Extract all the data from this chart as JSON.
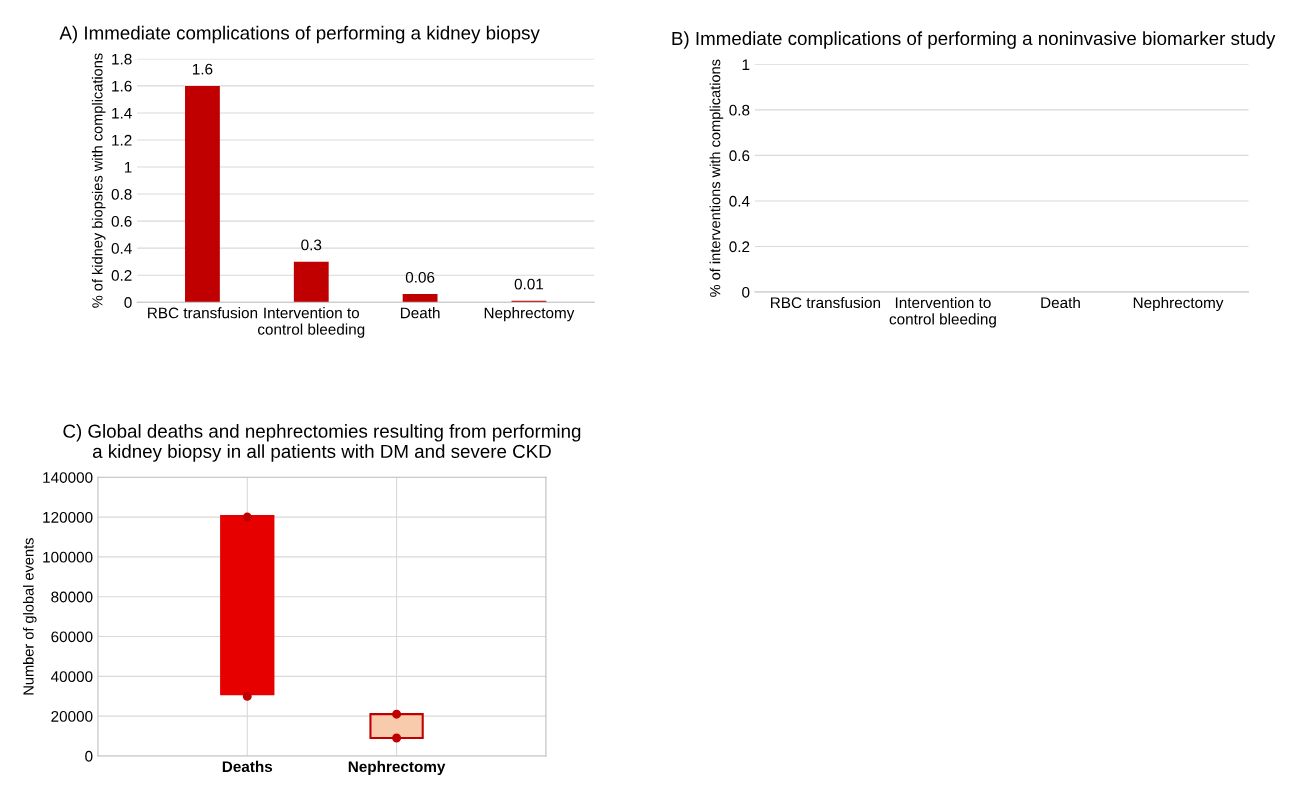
{
  "chart_data": [
    {
      "type": "bar",
      "title": "A) Immediate complications of performing a kidney biopsy",
      "ylabel": "% of kidney biopsies with complications",
      "categories": [
        "RBC transfusion",
        "Intervention to\ncontrol bleeding",
        "Death",
        "Nephrectomy"
      ],
      "values": [
        1.6,
        0.3,
        0.06,
        0.01
      ],
      "color": "#c00000",
      "ylim": [
        0,
        1.8
      ],
      "yticks": [
        0,
        0.2,
        0.4,
        0.6,
        0.8,
        1,
        1.2,
        1.4,
        1.6,
        1.8
      ],
      "grid": "y",
      "data_labels": true
    },
    {
      "type": "bar",
      "title": "B) Immediate complications of performing a noninvasive biomarker study",
      "ylabel": "% of interventions with complications",
      "categories": [
        "RBC transfusion",
        "Intervention to\ncontrol bleeding",
        "Death",
        "Nephrectomy"
      ],
      "values": [
        0,
        0,
        0,
        0
      ],
      "color": "#c00000",
      "ylim": [
        0,
        1
      ],
      "yticks": [
        0,
        0.2,
        0.4,
        0.6,
        0.8,
        1
      ],
      "grid": "y"
    },
    {
      "type": "bar",
      "title": "C) Global deaths and nephrectomies resulting from performing\na kidney biopsy in all patients with DM and severe CKD",
      "ylabel": "Number of global events",
      "categories": [
        "Deaths",
        "Nephrectomy"
      ],
      "base": [
        31000,
        9000
      ],
      "values": [
        89500,
        12000
      ],
      "colors": [
        "#e60000",
        "#f8cbad"
      ],
      "ylim": [
        0,
        140000
      ],
      "yticks": [
        0,
        20000,
        40000,
        60000,
        80000,
        100000,
        120000,
        140000
      ],
      "grid": true,
      "series": [
        {
          "type": "scatter",
          "x": [
            "Deaths",
            "Nephrectomy"
          ],
          "values": [
            120000,
            21000
          ],
          "color": "#c00000"
        },
        {
          "type": "scatter",
          "x": [
            "Deaths",
            "Nephrectomy"
          ],
          "values": [
            30000,
            9000
          ],
          "color": "#c00000"
        }
      ]
    }
  ]
}
